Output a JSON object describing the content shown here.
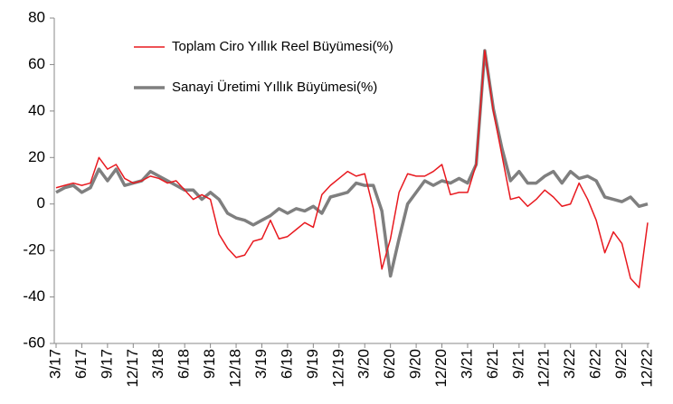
{
  "chart_data": {
    "type": "line",
    "categories": [
      "3/17",
      null,
      null,
      "6/17",
      null,
      null,
      "9/17",
      null,
      null,
      "12/17",
      null,
      null,
      "3/18",
      null,
      null,
      "6/18",
      null,
      null,
      "9/18",
      null,
      null,
      "12/18",
      null,
      null,
      "3/19",
      null,
      null,
      "6/19",
      null,
      null,
      "9/19",
      null,
      null,
      "12/19",
      null,
      null,
      "3/20",
      null,
      null,
      "6/20",
      null,
      null,
      "9/20",
      null,
      null,
      "12/20",
      null,
      null,
      "3/21",
      null,
      null,
      "6/21",
      null,
      null,
      "9/21",
      null,
      null,
      "12/21",
      null,
      null,
      "3/22",
      null,
      null,
      "6/22",
      null,
      null,
      "9/22",
      null,
      null,
      "12/22"
    ],
    "series": [
      {
        "name": "Toplam Ciro Yıllık Reel Büyümesi(%)",
        "color": "#e8191f",
        "width": 1.5,
        "values": [
          7,
          8,
          9,
          8,
          9,
          20,
          15,
          17,
          11,
          9,
          10,
          12,
          11,
          9,
          10,
          6,
          2,
          4,
          2,
          -13,
          -19,
          -23,
          -22,
          -16,
          -15,
          -7,
          -15,
          -14,
          -11,
          -8,
          -10,
          4,
          8,
          11,
          14,
          12,
          13,
          -2,
          -28,
          -15,
          5,
          13,
          12,
          12,
          14,
          17,
          4,
          5,
          5,
          17,
          66,
          40,
          21,
          2,
          3,
          -1,
          2,
          6,
          3,
          -1,
          0,
          9,
          2,
          -7,
          -21,
          -12,
          -17,
          -32,
          -36,
          -8
        ]
      },
      {
        "name": "Sanayi Üretimi Yıllık Büyümesi(%)",
        "color": "#7f7f7f",
        "width": 3.5,
        "values": [
          5,
          7,
          8,
          5,
          7,
          15,
          10,
          15,
          8,
          9,
          10,
          14,
          12,
          10,
          8,
          6,
          6,
          2,
          5,
          2,
          -4,
          -6,
          -7,
          -9,
          -7,
          -5,
          -2,
          -4,
          -2,
          -3,
          -1,
          -4,
          3,
          4,
          5,
          9,
          8,
          8,
          -3,
          -31,
          -15,
          0,
          5,
          10,
          8,
          10,
          9,
          11,
          9,
          17,
          66,
          41,
          24,
          10,
          14,
          9,
          9,
          12,
          14,
          9,
          14,
          11,
          12,
          10,
          3,
          2,
          1,
          3,
          -1,
          0
        ]
      }
    ],
    "ylim": [
      -60,
      80
    ],
    "yticks": [
      -60,
      -40,
      -20,
      0,
      20,
      40,
      60,
      80
    ],
    "grid": false
  }
}
